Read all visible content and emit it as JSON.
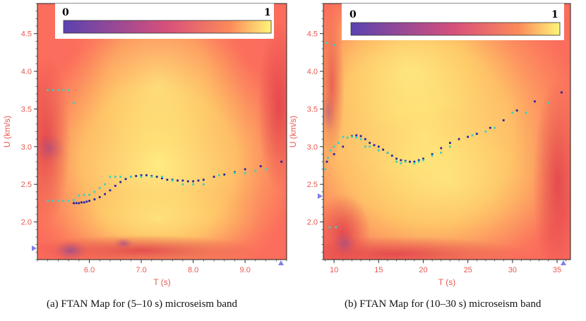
{
  "chart_data": [
    {
      "type": "heatmap",
      "title": "",
      "caption": "(a) FTAN Map for (5–10 s) microseism band",
      "xlabel": "T (s)",
      "ylabel": "U (km/s)",
      "xlim": [
        5.0,
        9.8
      ],
      "ylim": [
        1.5,
        4.9
      ],
      "xticks": [
        6.0,
        7.0,
        8.0,
        9.0
      ],
      "xtick_labels": [
        "6.0",
        "7.0",
        "8.0",
        "9.0"
      ],
      "yticks": [
        2.0,
        2.5,
        3.0,
        3.5,
        4.0,
        4.5
      ],
      "ytick_labels": [
        "2.0",
        "2.5",
        "3.0",
        "3.5",
        "4.0",
        "4.5"
      ],
      "colorbar": {
        "min_label": "0",
        "max_label": "1"
      },
      "series": [
        {
          "name": "dispersion picks (dark blue)",
          "color": "#2222aa",
          "x": [
            5.7,
            5.75,
            5.8,
            5.85,
            5.9,
            5.95,
            6.0,
            6.1,
            6.2,
            6.3,
            6.4,
            6.5,
            6.6,
            6.7,
            6.8,
            6.9,
            7.0,
            7.1,
            7.2,
            7.3,
            7.4,
            7.5,
            7.6,
            7.7,
            7.8,
            7.9,
            8.0,
            8.1,
            8.2,
            8.4,
            8.6,
            8.8,
            9.0,
            9.3,
            9.7
          ],
          "y": [
            2.25,
            2.25,
            2.25,
            2.26,
            2.26,
            2.27,
            2.28,
            2.3,
            2.33,
            2.37,
            2.42,
            2.48,
            2.53,
            2.57,
            2.6,
            2.61,
            2.62,
            2.62,
            2.61,
            2.6,
            2.58,
            2.56,
            2.56,
            2.55,
            2.55,
            2.54,
            2.54,
            2.55,
            2.56,
            2.6,
            2.63,
            2.66,
            2.7,
            2.74,
            2.8
          ]
        },
        {
          "name": "dispersion picks (cyan)",
          "color": "#35d3c0",
          "x": [
            5.2,
            5.3,
            5.4,
            5.5,
            5.6,
            5.7,
            5.2,
            5.3,
            5.4,
            5.5,
            5.6,
            5.7,
            5.8,
            5.9,
            6.0,
            6.1,
            6.2,
            6.3,
            6.4,
            6.5,
            6.6,
            6.8,
            7.0,
            7.2,
            7.4,
            7.6,
            7.8,
            8.0,
            8.2,
            8.5,
            8.8,
            9.0,
            9.2,
            9.4
          ],
          "y": [
            3.75,
            3.75,
            3.75,
            3.75,
            3.75,
            3.58,
            2.28,
            2.28,
            2.28,
            2.28,
            2.28,
            2.29,
            2.35,
            2.36,
            2.36,
            2.4,
            2.45,
            2.5,
            2.6,
            2.6,
            2.6,
            2.6,
            2.6,
            2.6,
            2.6,
            2.55,
            2.5,
            2.5,
            2.5,
            2.62,
            2.65,
            2.65,
            2.68,
            2.7
          ]
        }
      ]
    },
    {
      "type": "heatmap",
      "title": "",
      "caption": "(b) FTAN Map for (10–30 s) microseism band",
      "xlabel": "T (s)",
      "ylabel": "U (km/s)",
      "xlim": [
        8.8,
        36.5
      ],
      "ylim": [
        1.5,
        4.9
      ],
      "xticks": [
        10,
        15,
        20,
        25,
        30,
        35
      ],
      "xtick_labels": [
        "10",
        "15",
        "20",
        "25",
        "30",
        "35"
      ],
      "yticks": [
        2.0,
        2.5,
        3.0,
        3.5,
        4.0,
        4.5
      ],
      "ytick_labels": [
        "2.0",
        "2.5",
        "3.0",
        "3.5",
        "4.0",
        "4.5"
      ],
      "colorbar": {
        "min_label": "0",
        "max_label": "1"
      },
      "series": [
        {
          "name": "dispersion picks (dark blue)",
          "color": "#2222aa",
          "x": [
            9.2,
            10.0,
            11.0,
            12.0,
            12.5,
            13.0,
            13.5,
            14.0,
            14.5,
            15.0,
            15.5,
            16.0,
            16.5,
            17.0,
            17.5,
            18.0,
            18.5,
            19.0,
            19.5,
            20.0,
            21.0,
            22.0,
            23.0,
            24.0,
            25.0,
            26.0,
            27.5,
            29.0,
            30.5,
            32.5,
            35.5
          ],
          "y": [
            2.8,
            2.9,
            3.0,
            3.14,
            3.15,
            3.14,
            3.1,
            3.05,
            3.02,
            3.0,
            2.96,
            2.92,
            2.88,
            2.84,
            2.82,
            2.81,
            2.8,
            2.8,
            2.82,
            2.84,
            2.9,
            2.98,
            3.05,
            3.1,
            3.13,
            3.17,
            3.25,
            3.35,
            3.48,
            3.6,
            3.72
          ]
        },
        {
          "name": "dispersion picks (cyan)",
          "color": "#35d3c0",
          "x": [
            9.0,
            9.3,
            9.6,
            10.0,
            10.5,
            11.0,
            11.5,
            12.0,
            12.5,
            13.0,
            13.5,
            14.0,
            15.0,
            16.0,
            17.0,
            17.5,
            18.0,
            19.0,
            19.5,
            20.0,
            21.0,
            22.0,
            23.0,
            25.5,
            27.0,
            28.0,
            30.0,
            31.5,
            34.0,
            9.2,
            10.0,
            9.5,
            10.2
          ],
          "y": [
            2.7,
            2.85,
            2.95,
            3.0,
            3.05,
            3.13,
            3.12,
            3.13,
            3.12,
            3.1,
            3.0,
            3.0,
            2.95,
            2.92,
            2.8,
            2.78,
            2.8,
            2.78,
            2.8,
            2.82,
            2.88,
            2.92,
            3.0,
            3.15,
            3.2,
            3.25,
            3.45,
            3.45,
            3.58,
            4.38,
            4.35,
            1.93,
            1.93
          ]
        }
      ]
    }
  ]
}
